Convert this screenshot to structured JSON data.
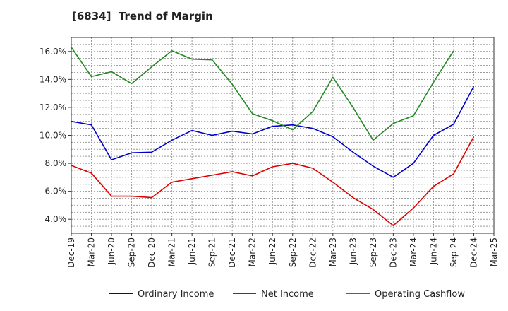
{
  "chart_data": {
    "type": "line",
    "title": "[6834]  Trend of Margin",
    "xlabel": "",
    "ylabel": "",
    "categories": [
      "Dec-19",
      "Mar-20",
      "Jun-20",
      "Sep-20",
      "Dec-20",
      "Mar-21",
      "Jun-21",
      "Sep-21",
      "Dec-21",
      "Mar-22",
      "Jun-22",
      "Sep-22",
      "Dec-22",
      "Mar-23",
      "Jun-23",
      "Sep-23",
      "Dec-23",
      "Mar-24",
      "Jun-24",
      "Sep-24",
      "Dec-24",
      "Mar-25"
    ],
    "ylim": [
      3.0,
      17.0
    ],
    "yticks": [
      4.0,
      6.0,
      8.0,
      10.0,
      12.0,
      14.0,
      16.0
    ],
    "ytick_labels": [
      "4.0%",
      "6.0%",
      "8.0%",
      "10.0%",
      "12.0%",
      "14.0%",
      "16.0%"
    ],
    "grid": true,
    "legend_position": "bottom",
    "series": [
      {
        "name": "Ordinary Income",
        "color": "#0000cc",
        "values": [
          11.0,
          10.75,
          8.25,
          8.75,
          8.8,
          9.65,
          10.35,
          10.0,
          10.3,
          10.1,
          10.65,
          10.75,
          10.5,
          9.9,
          8.8,
          7.8,
          7.0,
          8.0,
          10.0,
          10.8,
          13.5,
          null
        ]
      },
      {
        "name": "Net Income",
        "color": "#dd0000",
        "values": [
          7.85,
          7.3,
          5.65,
          5.65,
          5.55,
          6.65,
          6.9,
          7.15,
          7.4,
          7.1,
          7.75,
          8.0,
          7.65,
          6.65,
          5.55,
          4.7,
          3.55,
          4.8,
          6.35,
          7.25,
          9.9,
          null
        ]
      },
      {
        "name": "Operating Cashflow",
        "color": "#228822",
        "values": [
          16.3,
          14.2,
          14.55,
          13.7,
          14.9,
          16.05,
          15.45,
          15.4,
          13.65,
          11.55,
          11.05,
          10.4,
          11.7,
          14.15,
          12.0,
          9.65,
          10.85,
          11.4,
          13.8,
          16.05,
          null,
          null
        ]
      }
    ]
  }
}
